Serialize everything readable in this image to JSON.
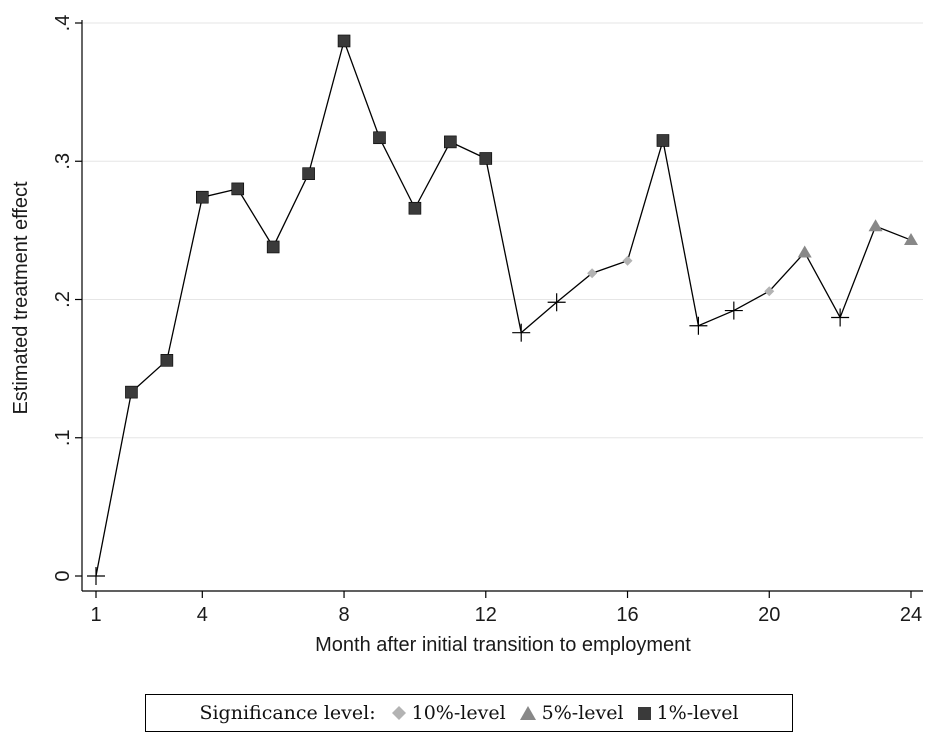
{
  "chart_data": {
    "type": "line",
    "title": "",
    "xlabel": "Month after initial transition to employment",
    "ylabel": "Estimated treatment effect",
    "xlim": [
      1,
      24
    ],
    "ylim": [
      0,
      0.4
    ],
    "x_ticks": [
      1,
      4,
      8,
      12,
      16,
      20,
      24
    ],
    "x_tick_labels": [
      "1",
      "4",
      "8",
      "12",
      "16",
      "20",
      "24"
    ],
    "y_ticks": [
      0,
      0.1,
      0.2,
      0.3,
      0.4
    ],
    "y_tick_labels": [
      "0",
      ".1",
      ".2",
      ".3",
      ".4"
    ],
    "grid": "horizontal",
    "legend_position": "bottom",
    "legend": {
      "title": "Significance level:",
      "entries": [
        {
          "label": "10%-level",
          "marker": "diamond",
          "color": "#b3b3b3"
        },
        {
          "label": "5%-level",
          "marker": "triangle",
          "color": "#888888"
        },
        {
          "label": "1%-level",
          "marker": "square",
          "color": "#3a3a3a"
        }
      ]
    },
    "series": [
      {
        "points": [
          {
            "x": 1,
            "y": 0.0,
            "marker": "plus"
          },
          {
            "x": 2,
            "y": 0.133,
            "marker": "square"
          },
          {
            "x": 3,
            "y": 0.156,
            "marker": "square"
          },
          {
            "x": 4,
            "y": 0.274,
            "marker": "square"
          },
          {
            "x": 5,
            "y": 0.28,
            "marker": "square"
          },
          {
            "x": 6,
            "y": 0.238,
            "marker": "square"
          },
          {
            "x": 7,
            "y": 0.291,
            "marker": "square"
          },
          {
            "x": 8,
            "y": 0.387,
            "marker": "square"
          },
          {
            "x": 9,
            "y": 0.317,
            "marker": "square"
          },
          {
            "x": 10,
            "y": 0.266,
            "marker": "square"
          },
          {
            "x": 11,
            "y": 0.314,
            "marker": "square"
          },
          {
            "x": 12,
            "y": 0.302,
            "marker": "square"
          },
          {
            "x": 13,
            "y": 0.176,
            "marker": "plus"
          },
          {
            "x": 14,
            "y": 0.198,
            "marker": "plus"
          },
          {
            "x": 15,
            "y": 0.219,
            "marker": "diamond"
          },
          {
            "x": 16,
            "y": 0.228,
            "marker": "diamond"
          },
          {
            "x": 17,
            "y": 0.315,
            "marker": "square"
          },
          {
            "x": 18,
            "y": 0.181,
            "marker": "plus"
          },
          {
            "x": 19,
            "y": 0.192,
            "marker": "plus"
          },
          {
            "x": 20,
            "y": 0.206,
            "marker": "diamond"
          },
          {
            "x": 21,
            "y": 0.234,
            "marker": "triangle"
          },
          {
            "x": 22,
            "y": 0.187,
            "marker": "plus"
          },
          {
            "x": 23,
            "y": 0.253,
            "marker": "triangle"
          },
          {
            "x": 24,
            "y": 0.243,
            "marker": "triangle"
          }
        ]
      }
    ]
  }
}
